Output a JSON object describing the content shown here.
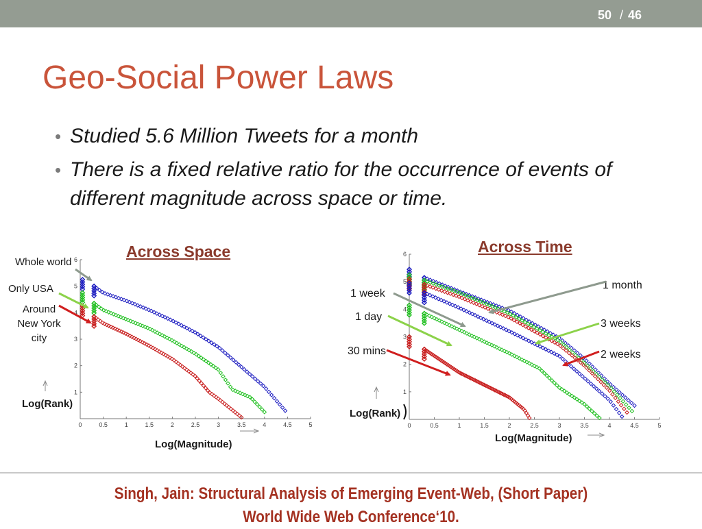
{
  "header": {
    "page_num": "50",
    "page_sep": "/",
    "page_total": "46"
  },
  "slide": {
    "title": "Geo-Social Power Laws",
    "bullets": [
      "Studied 5.6 Million Tweets for a month",
      "There is a fixed relative ratio for the occurrence of events of different magnitude across space or time."
    ]
  },
  "citation": {
    "line1": "Singh, Jain: Structural Analysis of Emerging Event-Web, (Short Paper)",
    "line2": "World Wide Web Conference‘10."
  },
  "colors": {
    "title": "#c9543a",
    "chart_title": "#8a3a2c",
    "citation": "#a43222",
    "blue": "#1c1cc0",
    "green": "#22c022",
    "red": "#c81e1e",
    "gray_arrow": "#8e9a8e",
    "lime_arrow": "#8cd24a",
    "topbar": "#949c92"
  },
  "chart_data": [
    {
      "type": "scatter",
      "title": "Across Space",
      "xlabel": "Log(Magnitude)",
      "ylabel": "Log(Rank)",
      "xlim": [
        0,
        5
      ],
      "ylim": [
        0,
        6
      ],
      "x_ticks": [
        "0",
        "0.5",
        "1",
        "1.5",
        "2",
        "2.5",
        "3",
        "3.5",
        "4",
        "4.5",
        "5"
      ],
      "y_ticks": [
        "1",
        "2",
        "3",
        "4",
        "5",
        "6"
      ],
      "annotations": [
        "Whole world",
        "Only USA",
        "Around New York city"
      ],
      "series": [
        {
          "color": "#1c1cc0",
          "points": [
            [
              0.05,
              5.25
            ],
            [
              0.3,
              5.0
            ],
            [
              0.5,
              4.75
            ],
            [
              1.0,
              4.45
            ],
            [
              1.5,
              4.1
            ],
            [
              2.0,
              3.7
            ],
            [
              2.5,
              3.25
            ],
            [
              3.0,
              2.7
            ],
            [
              3.5,
              1.95
            ],
            [
              4.0,
              1.2
            ],
            [
              4.45,
              0.3
            ]
          ]
        },
        {
          "color": "#22c022",
          "points": [
            [
              0.05,
              4.75
            ],
            [
              0.3,
              4.35
            ],
            [
              0.5,
              4.1
            ],
            [
              1.0,
              3.75
            ],
            [
              1.5,
              3.4
            ],
            [
              2.0,
              2.95
            ],
            [
              2.5,
              2.45
            ],
            [
              3.0,
              1.85
            ],
            [
              3.3,
              1.1
            ],
            [
              3.7,
              0.8
            ],
            [
              4.0,
              0.25
            ]
          ]
        },
        {
          "color": "#c81e1e",
          "points": [
            [
              0.05,
              4.25
            ],
            [
              0.3,
              3.85
            ],
            [
              0.5,
              3.6
            ],
            [
              1.0,
              3.2
            ],
            [
              1.5,
              2.75
            ],
            [
              2.0,
              2.25
            ],
            [
              2.5,
              1.6
            ],
            [
              2.8,
              1.0
            ],
            [
              3.0,
              0.75
            ],
            [
              3.5,
              0.05
            ]
          ]
        }
      ]
    },
    {
      "type": "scatter",
      "title": "Across Time",
      "xlabel": "Log(Magnitude)",
      "ylabel": "Log(Rank)",
      "xlim": [
        0,
        5
      ],
      "ylim": [
        0,
        6
      ],
      "x_ticks": [
        "0",
        "0.5",
        "1",
        "1.5",
        "2",
        "2.5",
        "3",
        "3.5",
        "4",
        "4.5",
        "5"
      ],
      "y_ticks": [
        "1",
        "2",
        "3",
        "4",
        "5",
        "6"
      ],
      "annotations": [
        "1 week",
        "1 day",
        "30 mins",
        "1 month",
        "3 weeks",
        "2 weeks"
      ],
      "series": [
        {
          "color": "#1c1cc0",
          "points": [
            [
              0.0,
              5.45
            ],
            [
              0.3,
              5.15
            ],
            [
              1.0,
              4.65
            ],
            [
              2.0,
              3.95
            ],
            [
              3.0,
              2.95
            ],
            [
              3.5,
              2.2
            ],
            [
              4.0,
              1.3
            ],
            [
              4.5,
              0.5
            ]
          ]
        },
        {
          "color": "#22c022",
          "points": [
            [
              0.0,
              5.25
            ],
            [
              0.3,
              5.05
            ],
            [
              1.0,
              4.6
            ],
            [
              2.0,
              3.85
            ],
            [
              3.0,
              2.85
            ],
            [
              3.5,
              2.05
            ],
            [
              4.0,
              1.2
            ],
            [
              4.45,
              0.3
            ]
          ]
        },
        {
          "color": "#c81e1e",
          "points": [
            [
              0.0,
              5.1
            ],
            [
              0.3,
              4.9
            ],
            [
              1.0,
              4.45
            ],
            [
              2.0,
              3.7
            ],
            [
              3.0,
              2.7
            ],
            [
              3.5,
              1.95
            ],
            [
              4.0,
              1.05
            ],
            [
              4.35,
              0.25
            ]
          ]
        },
        {
          "color": "#1c1cc0",
          "points": [
            [
              0.0,
              4.95
            ],
            [
              0.3,
              4.6
            ],
            [
              1.0,
              4.05
            ],
            [
              2.0,
              3.2
            ],
            [
              3.0,
              2.3
            ],
            [
              3.5,
              1.5
            ],
            [
              4.0,
              0.7
            ],
            [
              4.25,
              0.1
            ]
          ]
        },
        {
          "color": "#22c022",
          "points": [
            [
              0.0,
              4.15
            ],
            [
              0.3,
              3.85
            ],
            [
              1.0,
              3.25
            ],
            [
              2.0,
              2.4
            ],
            [
              2.6,
              1.85
            ],
            [
              3.0,
              1.15
            ],
            [
              3.5,
              0.55
            ],
            [
              3.8,
              0.05
            ]
          ]
        },
        {
          "color": "#c81e1e",
          "points": [
            [
              0.0,
              3.0
            ],
            [
              0.3,
              2.55
            ],
            [
              1.0,
              1.7
            ],
            [
              1.5,
              1.25
            ],
            [
              2.0,
              0.8
            ],
            [
              2.3,
              0.35
            ],
            [
              2.4,
              0.05
            ]
          ]
        }
      ]
    }
  ]
}
